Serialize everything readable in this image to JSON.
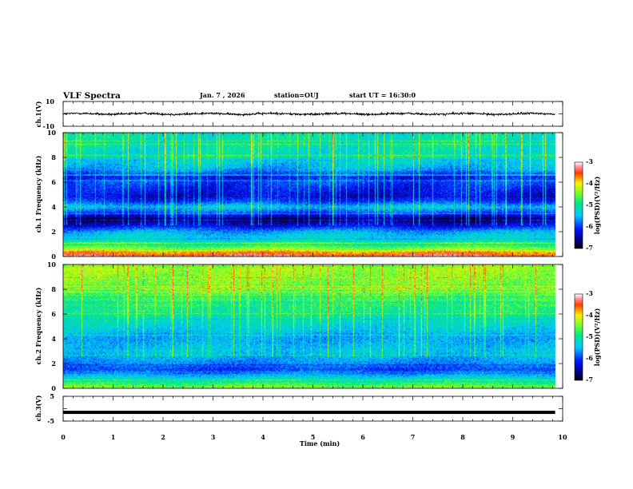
{
  "header": {
    "title": "VLF Spectra",
    "date": "Jan. 7 , 2026",
    "station": "station=OUJ",
    "start_ut": "start UT = 16:30:0"
  },
  "chart_data": [
    {
      "name": "ch1-waveform",
      "type": "line",
      "ylabel": "ch.1(V)",
      "ylim": [
        -10,
        10
      ],
      "yticks": [
        "10",
        "-10"
      ],
      "baseline_value": 0,
      "noise_amplitude": 1.5,
      "xlim": [
        0,
        10
      ]
    },
    {
      "name": "ch1-spectrogram",
      "type": "heatmap",
      "ylabel": "ch.1 Frequency (kHz)",
      "ylim": [
        0,
        10
      ],
      "yticks": [
        "0",
        "2",
        "4",
        "6",
        "8",
        "10"
      ],
      "xlim": [
        0,
        10
      ],
      "data_end_min": 9.85,
      "colorbar": {
        "label": "log(PSD)(V²/Hz)",
        "range": [
          -7,
          -3
        ],
        "ticks": [
          "-3",
          "-4",
          "-5",
          "-6",
          "-7"
        ]
      },
      "frequency_profile_khz": [
        [
          0.0,
          -3.3
        ],
        [
          0.3,
          -3.7
        ],
        [
          0.6,
          -4.4
        ],
        [
          1.0,
          -5.0
        ],
        [
          1.5,
          -5.3
        ],
        [
          2.0,
          -5.6
        ],
        [
          2.5,
          -6.3
        ],
        [
          3.0,
          -6.7
        ],
        [
          3.5,
          -6.0
        ],
        [
          4.0,
          -5.4
        ],
        [
          4.5,
          -6.1
        ],
        [
          5.0,
          -6.3
        ],
        [
          6.0,
          -6.0
        ],
        [
          6.5,
          -6.2
        ],
        [
          7.0,
          -5.6
        ],
        [
          8.0,
          -5.2
        ],
        [
          9.0,
          -5.1
        ],
        [
          10.0,
          -5.1
        ]
      ]
    },
    {
      "name": "ch2-spectrogram",
      "type": "heatmap",
      "ylabel": "ch.2 Frequency (kHz)",
      "ylim": [
        0,
        10
      ],
      "yticks": [
        "0",
        "2",
        "4",
        "6",
        "8",
        "10"
      ],
      "xlim": [
        0,
        10
      ],
      "data_end_min": 9.85,
      "colorbar": {
        "label": "log(PSD)(V²/Hz)",
        "range": [
          -7,
          -3
        ],
        "ticks": [
          "-3",
          "-4",
          "-5",
          "-6",
          "-7"
        ]
      },
      "frequency_profile_khz": [
        [
          0.0,
          -4.4
        ],
        [
          0.5,
          -4.9
        ],
        [
          1.0,
          -5.5
        ],
        [
          1.5,
          -6.0
        ],
        [
          2.0,
          -5.7
        ],
        [
          3.0,
          -5.4
        ],
        [
          3.5,
          -5.5
        ],
        [
          4.0,
          -5.6
        ],
        [
          5.0,
          -5.3
        ],
        [
          6.0,
          -5.0
        ],
        [
          7.0,
          -4.8
        ],
        [
          8.0,
          -4.5
        ],
        [
          9.0,
          -4.4
        ],
        [
          10.0,
          -4.3
        ]
      ]
    },
    {
      "name": "ch3-waveform",
      "type": "line",
      "ylabel": "ch.3(V)",
      "ylim": [
        -5,
        5
      ],
      "yticks": [
        "5",
        "-5"
      ],
      "baseline_value": -1.5,
      "xlim": [
        0,
        10
      ]
    }
  ],
  "xaxis": {
    "label": "Time (min)",
    "ticks": [
      "0",
      "1",
      "2",
      "3",
      "4",
      "5",
      "6",
      "7",
      "8",
      "9",
      "10"
    ]
  }
}
